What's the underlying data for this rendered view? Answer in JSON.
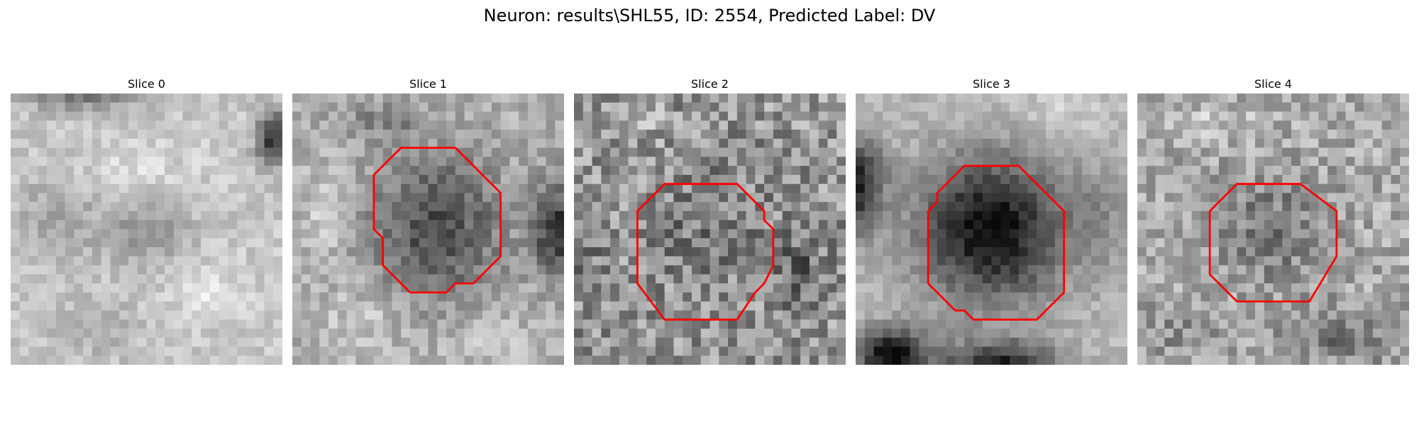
{
  "figure": {
    "title": "Neuron: results\\SHL55, ID: 2554, Predicted Label: DV"
  },
  "panels": [
    {
      "title": "Slice 0",
      "has_contour": false,
      "contour_color": "#ff0000"
    },
    {
      "title": "Slice 1",
      "has_contour": true,
      "contour_color": "#ff0000"
    },
    {
      "title": "Slice 2",
      "has_contour": true,
      "contour_color": "#ff0000"
    },
    {
      "title": "Slice 3",
      "has_contour": true,
      "contour_color": "#ff0000"
    },
    {
      "title": "Slice 4",
      "has_contour": true,
      "contour_color": "#ff0000"
    }
  ],
  "colors": {
    "contour": "#ff0000",
    "background": "#ffffff"
  }
}
